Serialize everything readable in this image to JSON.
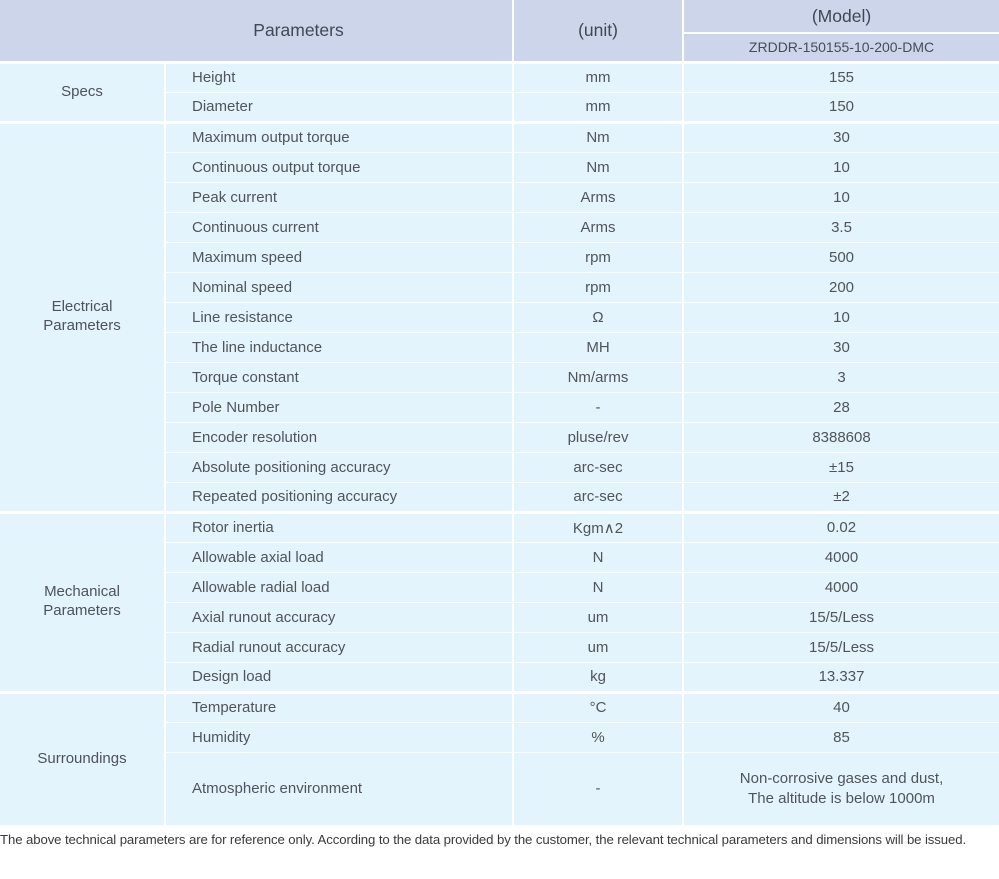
{
  "header": {
    "parameters_label": "Parameters",
    "unit_label": "(unit)",
    "model_label": "(Model)",
    "model_value": "ZRDDR-150155-10-200-DMC"
  },
  "groups": [
    {
      "label": "Specs",
      "rows": [
        {
          "param": "Height",
          "unit": "mm",
          "value": "155"
        },
        {
          "param": "Diameter",
          "unit": "mm",
          "value": "150"
        }
      ]
    },
    {
      "label": "Electrical\nParameters",
      "rows": [
        {
          "param": "Maximum output torque",
          "unit": "Nm",
          "value": "30"
        },
        {
          "param": "Continuous output torque",
          "unit": "Nm",
          "value": "10"
        },
        {
          "param": "Peak current",
          "unit": "Arms",
          "value": "10"
        },
        {
          "param": "Continuous current",
          "unit": "Arms",
          "value": "3.5"
        },
        {
          "param": "Maximum speed",
          "unit": "rpm",
          "value": "500"
        },
        {
          "param": "Nominal speed",
          "unit": "rpm",
          "value": "200"
        },
        {
          "param": "Line resistance",
          "unit": "Ω",
          "value": "10"
        },
        {
          "param": "The line inductance",
          "unit": "MH",
          "value": "30"
        },
        {
          "param": "Torque constant",
          "unit": "Nm/arms",
          "value": "3"
        },
        {
          "param": "Pole Number",
          "unit": "-",
          "value": "28"
        },
        {
          "param": "Encoder resolution",
          "unit": "pluse/rev",
          "value": "8388608"
        },
        {
          "param": "Absolute positioning accuracy",
          "unit": "arc-sec",
          "value": "±15"
        },
        {
          "param": "Repeated positioning accuracy",
          "unit": "arc-sec",
          "value": "±2"
        }
      ]
    },
    {
      "label": "Mechanical\nParameters",
      "rows": [
        {
          "param": "Rotor inertia",
          "unit": "Kgm∧2",
          "value": "0.02"
        },
        {
          "param": "Allowable axial load",
          "unit": "N",
          "value": "4000"
        },
        {
          "param": "Allowable radial load",
          "unit": "N",
          "value": "4000"
        },
        {
          "param": "Axial runout accuracy",
          "unit": "um",
          "value": "15/5/Less"
        },
        {
          "param": "Radial runout accuracy",
          "unit": "um",
          "value": "15/5/Less"
        },
        {
          "param": "Design load",
          "unit": "kg",
          "value": "13.337"
        }
      ]
    },
    {
      "label": "Surroundings",
      "rows": [
        {
          "param": "Temperature",
          "unit": "°C",
          "value": "40"
        },
        {
          "param": "Humidity",
          "unit": "%",
          "value": "85"
        },
        {
          "param": "Atmospheric environment",
          "unit": "-",
          "value": "Non-corrosive gases and dust,",
          "value2": "The altitude is below 1000m"
        }
      ]
    }
  ],
  "footer": {
    "note": "The above technical parameters are for reference only. According to the data provided by the customer, the relevant technical parameters and dimensions will be issued."
  },
  "colors": {
    "header_bg": "#ccd5ea",
    "body_bg": "#e4f4fc",
    "separator": "#ffffff",
    "body_text": "#50545a",
    "header_text": "#414855"
  }
}
